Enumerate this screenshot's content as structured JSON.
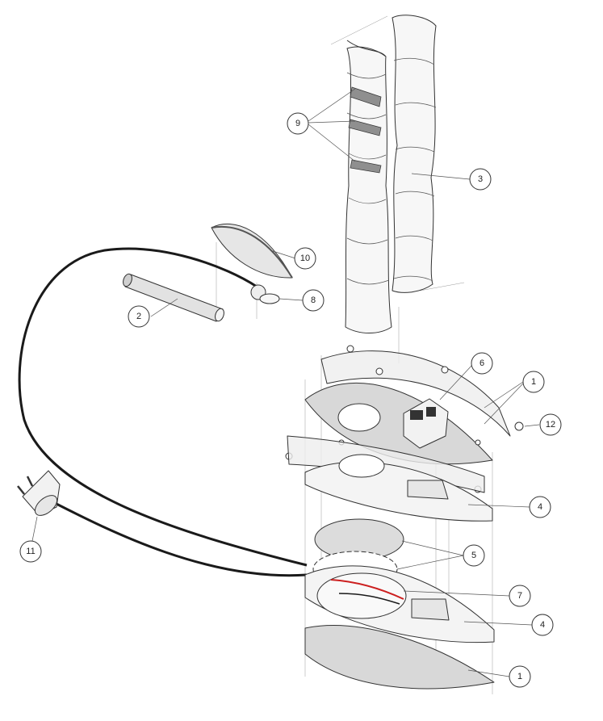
{
  "callouts": [
    {
      "id": "c1a",
      "label": "1"
    },
    {
      "id": "c1b",
      "label": "1"
    },
    {
      "id": "c2",
      "label": "2"
    },
    {
      "id": "c3",
      "label": "3"
    },
    {
      "id": "c4a",
      "label": "4"
    },
    {
      "id": "c4b",
      "label": "4"
    },
    {
      "id": "c5",
      "label": "5"
    },
    {
      "id": "c6",
      "label": "6"
    },
    {
      "id": "c7",
      "label": "7"
    },
    {
      "id": "c8",
      "label": "8"
    },
    {
      "id": "c9",
      "label": "9"
    },
    {
      "id": "c10",
      "label": "10"
    },
    {
      "id": "c11",
      "label": "11"
    },
    {
      "id": "c12",
      "label": "12"
    }
  ],
  "colors": {
    "line": "#333333",
    "plate": "#d8d8d8",
    "acrylic": "#eeeeee",
    "band": "#8f8f8f",
    "cable": "#1a1a1a",
    "wire_red": "#cc1f1f"
  }
}
